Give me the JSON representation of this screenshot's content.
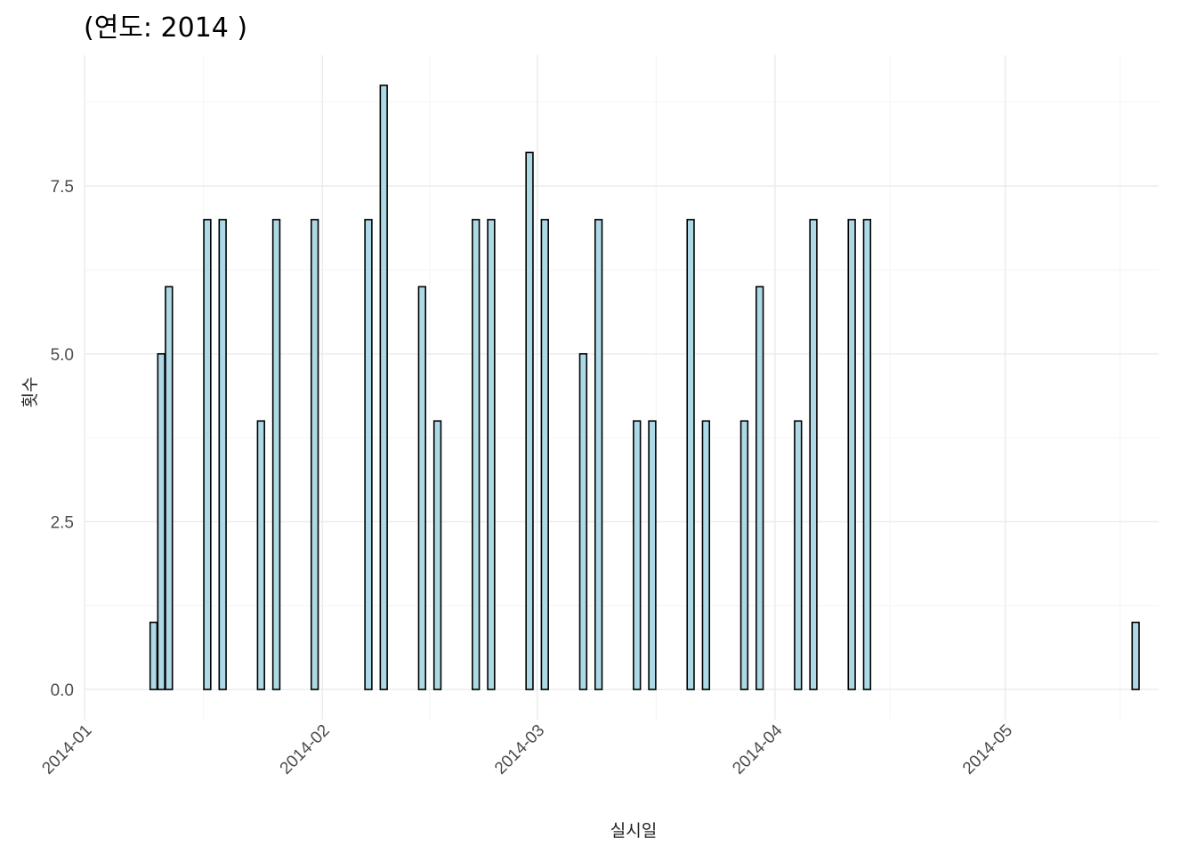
{
  "chart_data": {
    "type": "bar",
    "title": "(연도: 2014 )",
    "xlabel": "실시일",
    "ylabel": "횟수",
    "x_start": "2014-01-01",
    "x_end": "2014-05-21",
    "ylim": [
      -0.45,
      9.45
    ],
    "grid": true,
    "legend": "none",
    "x_ticks": [
      "2014-01",
      "2014-02",
      "2014-03",
      "2014-04",
      "2014-05"
    ],
    "x_tick_dates": [
      "2014-01-01",
      "2014-02-01",
      "2014-03-01",
      "2014-04-01",
      "2014-05-01"
    ],
    "y_ticks": [
      "0.0",
      "2.5",
      "5.0",
      "7.5"
    ],
    "y_tick_values": [
      0,
      2.5,
      5.0,
      7.5
    ],
    "bar_fill": "#add8e6",
    "bar_stroke": "#000000",
    "dates": [
      "2014-01-10",
      "2014-01-11",
      "2014-01-12",
      "2014-01-17",
      "2014-01-19",
      "2014-01-24",
      "2014-01-26",
      "2014-01-31",
      "2014-02-07",
      "2014-02-09",
      "2014-02-14",
      "2014-02-16",
      "2014-02-21",
      "2014-02-23",
      "2014-02-28",
      "2014-03-02",
      "2014-03-07",
      "2014-03-09",
      "2014-03-14",
      "2014-03-16",
      "2014-03-21",
      "2014-03-23",
      "2014-03-28",
      "2014-03-30",
      "2014-04-04",
      "2014-04-06",
      "2014-04-11",
      "2014-04-13",
      "2014-05-18"
    ],
    "values": [
      1,
      5,
      6,
      7,
      7,
      4,
      7,
      7,
      7,
      9,
      6,
      4,
      7,
      7,
      8,
      7,
      5,
      7,
      4,
      4,
      7,
      4,
      4,
      6,
      4,
      7,
      7,
      7,
      1
    ]
  }
}
